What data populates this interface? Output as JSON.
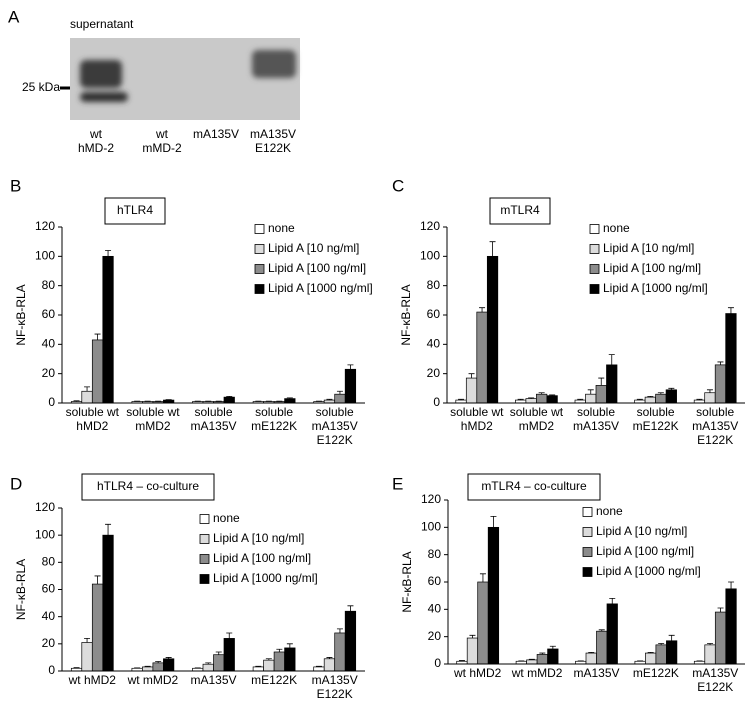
{
  "panel_a": {
    "label": "A",
    "title": "supernatant",
    "marker": "25 kDa",
    "lanes": [
      "wt\nhMD-2",
      "wt\nmMD-2",
      "mA135V",
      "mA135V\nE122K"
    ]
  },
  "chart_data": [
    {
      "type": "bar",
      "panel": "B",
      "box_label": "hTLR4",
      "ylabel": "NF-κB-RLA",
      "categories": [
        "soluble wt\nhMD2",
        "soluble wt\nmMD2",
        "soluble\nmA135V",
        "soluble\nmE122K",
        "soluble\nmA135V\nE122K"
      ],
      "ylim": [
        0,
        120
      ],
      "yticks": [
        0,
        20,
        40,
        60,
        80,
        100,
        120
      ],
      "series": [
        {
          "name": "none",
          "color": "#ffffff",
          "values": [
            1,
            1,
            1,
            1,
            1
          ],
          "errors": [
            0.5,
            0.3,
            0.3,
            0.3,
            0.3
          ]
        },
        {
          "name": "Lipid A [10 ng/ml]",
          "color": "#dcdcdc",
          "values": [
            8,
            1,
            1,
            1,
            2
          ],
          "errors": [
            3,
            0.3,
            0.3,
            0.3,
            0.5
          ]
        },
        {
          "name": "Lipid A [100 ng/ml]",
          "color": "#8c8c8c",
          "values": [
            43,
            1,
            1,
            1,
            6
          ],
          "errors": [
            4,
            0.3,
            0.3,
            0.3,
            2
          ]
        },
        {
          "name": "Lipid A [1000 ng/ml]",
          "color": "#000000",
          "values": [
            100,
            2,
            4,
            3,
            23
          ],
          "errors": [
            4,
            0.3,
            0.5,
            0.5,
            3
          ]
        }
      ]
    },
    {
      "type": "bar",
      "panel": "C",
      "box_label": "mTLR4",
      "ylabel": "NF-κB-RLA",
      "categories": [
        "soluble wt\nhMD2",
        "soluble wt\nmMD2",
        "soluble\nmA135V",
        "soluble\nmE122K",
        "soluble\nmA135V\nE122K"
      ],
      "ylim": [
        0,
        120
      ],
      "yticks": [
        0,
        20,
        40,
        60,
        80,
        100,
        120
      ],
      "series": [
        {
          "name": "none",
          "color": "#ffffff",
          "values": [
            2,
            2,
            2,
            2,
            2
          ],
          "errors": [
            0.5,
            0.5,
            0.5,
            0.5,
            0.5
          ]
        },
        {
          "name": "Lipid A [10 ng/ml]",
          "color": "#dcdcdc",
          "values": [
            17,
            3,
            6,
            4,
            7
          ],
          "errors": [
            3,
            0.5,
            3,
            0.5,
            2
          ]
        },
        {
          "name": "Lipid A [100 ng/ml]",
          "color": "#8c8c8c",
          "values": [
            62,
            6,
            12,
            6,
            26
          ],
          "errors": [
            3,
            1,
            5,
            1,
            2
          ]
        },
        {
          "name": "Lipid A [1000 ng/ml]",
          "color": "#000000",
          "values": [
            100,
            5,
            26,
            9,
            61
          ],
          "errors": [
            10,
            0.5,
            7,
            1,
            4
          ]
        }
      ]
    },
    {
      "type": "bar",
      "panel": "D",
      "box_label": "hTLR4 – co-culture",
      "ylabel": "NF-κB-RLA",
      "categories": [
        "wt hMD2",
        "wt mMD2",
        "mA135V",
        "mE122K",
        "mA135V\nE122K"
      ],
      "ylim": [
        0,
        120
      ],
      "yticks": [
        0,
        20,
        40,
        60,
        80,
        100,
        120
      ],
      "series": [
        {
          "name": "none",
          "color": "#ffffff",
          "values": [
            2,
            2,
            2,
            3,
            3
          ],
          "errors": [
            0.5,
            0.3,
            0.3,
            0.5,
            0.5
          ]
        },
        {
          "name": "Lipid A [10 ng/ml]",
          "color": "#dcdcdc",
          "values": [
            21,
            3,
            5,
            8,
            9
          ],
          "errors": [
            3,
            0.5,
            1,
            1,
            1
          ]
        },
        {
          "name": "Lipid A [100 ng/ml]",
          "color": "#8c8c8c",
          "values": [
            64,
            6,
            12,
            14,
            28
          ],
          "errors": [
            6,
            1,
            2,
            2,
            3
          ]
        },
        {
          "name": "Lipid A [1000 ng/ml]",
          "color": "#000000",
          "values": [
            100,
            9,
            24,
            17,
            44
          ],
          "errors": [
            8,
            1,
            4,
            3,
            4
          ]
        }
      ]
    },
    {
      "type": "bar",
      "panel": "E",
      "box_label": "mTLR4 – co-culture",
      "ylabel": "NF-κB-RLA",
      "categories": [
        "wt hMD2",
        "wt mMD2",
        "mA135V",
        "mE122K",
        "mA135V\nE122K"
      ],
      "ylim": [
        0,
        120
      ],
      "yticks": [
        0,
        20,
        40,
        60,
        80,
        100,
        120
      ],
      "series": [
        {
          "name": "none",
          "color": "#ffffff",
          "values": [
            2,
            2,
            2,
            2,
            2
          ],
          "errors": [
            0.5,
            0.3,
            0.3,
            0.3,
            0.3
          ]
        },
        {
          "name": "Lipid A [10 ng/ml]",
          "color": "#dcdcdc",
          "values": [
            19,
            3,
            8,
            8,
            14
          ],
          "errors": [
            2,
            0.5,
            0.5,
            0.5,
            1
          ]
        },
        {
          "name": "Lipid A [100 ng/ml]",
          "color": "#8c8c8c",
          "values": [
            60,
            7,
            24,
            14,
            38
          ],
          "errors": [
            6,
            1,
            1,
            1,
            3
          ]
        },
        {
          "name": "Lipid A [1000 ng/ml]",
          "color": "#000000",
          "values": [
            100,
            11,
            44,
            17,
            55
          ],
          "errors": [
            8,
            2,
            4,
            4,
            5
          ]
        }
      ]
    }
  ]
}
